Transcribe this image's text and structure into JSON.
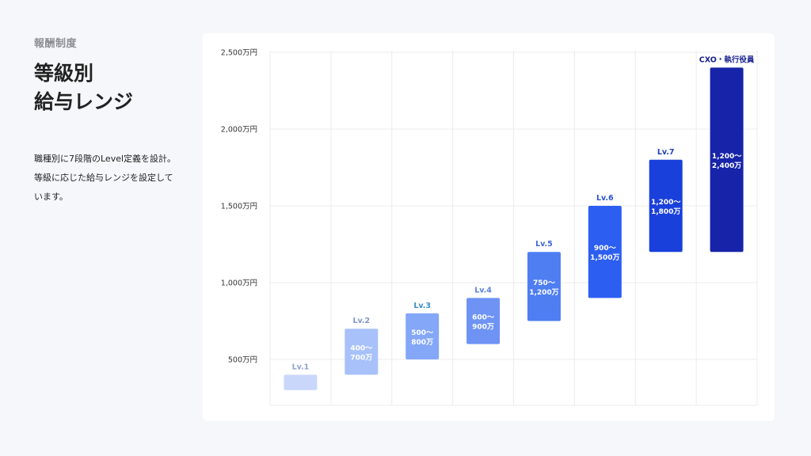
{
  "header": {
    "kicker": "報酬制度",
    "title_line1": "等級別",
    "title_line2": "給与レンジ"
  },
  "description": {
    "line1": "職種別に7段階のLevel定義を設計。",
    "line2": "等級に応じた給与レンジを設定して",
    "line3": "います。"
  },
  "chart_data": {
    "type": "bar",
    "subtype": "floating-range",
    "unit": "万円",
    "ylim": [
      300,
      2500
    ],
    "yticks": [
      500,
      1000,
      1500,
      2000,
      2500
    ],
    "ytick_labels": [
      "500万円",
      "1,000万円",
      "1,500万円",
      "2,000万円",
      "2,500万円"
    ],
    "grid": true,
    "categories": [
      "Lv.1",
      "Lv.2",
      "Lv.3",
      "Lv.4",
      "Lv.5",
      "Lv.6",
      "Lv.7",
      "CXO・執行役員"
    ],
    "ranges": [
      {
        "level": "Lv.1",
        "min": 300,
        "max": 400,
        "label_top": "",
        "label_bottom": "",
        "bar_color": "#c9d7fb",
        "level_color": "#8ea3cf"
      },
      {
        "level": "Lv.2",
        "min": 400,
        "max": 700,
        "label_top": "400～",
        "label_bottom": "700万",
        "bar_color": "#a8c1fa",
        "level_color": "#7f96c8"
      },
      {
        "level": "Lv.3",
        "min": 500,
        "max": 800,
        "label_top": "500～",
        "label_bottom": "800万",
        "bar_color": "#85a7f8",
        "level_color": "#3b8fc4"
      },
      {
        "level": "Lv.4",
        "min": 600,
        "max": 900,
        "label_top": "600～",
        "label_bottom": "900万",
        "bar_color": "#6e93f5",
        "level_color": "#5b7fe6"
      },
      {
        "level": "Lv.5",
        "min": 750,
        "max": 1200,
        "label_top": "750～",
        "label_bottom": "1,200万",
        "bar_color": "#4f7ef3",
        "level_color": "#3f66d9"
      },
      {
        "level": "Lv.6",
        "min": 900,
        "max": 1500,
        "label_top": "900～",
        "label_bottom": "1,500万",
        "bar_color": "#2c5ef1",
        "level_color": "#2b53cf"
      },
      {
        "level": "Lv.7",
        "min": 1200,
        "max": 1800,
        "label_top": "1,200～",
        "label_bottom": "1,800万",
        "bar_color": "#1a40db",
        "level_color": "#1c3fb8"
      },
      {
        "level": "CXO・執行役員",
        "min": 1200,
        "max": 2400,
        "label_top": "1,200～",
        "label_bottom": "2,400万",
        "bar_color": "#1723a8",
        "level_color": "#161f8f"
      }
    ],
    "grid_color": "#ececf0"
  }
}
